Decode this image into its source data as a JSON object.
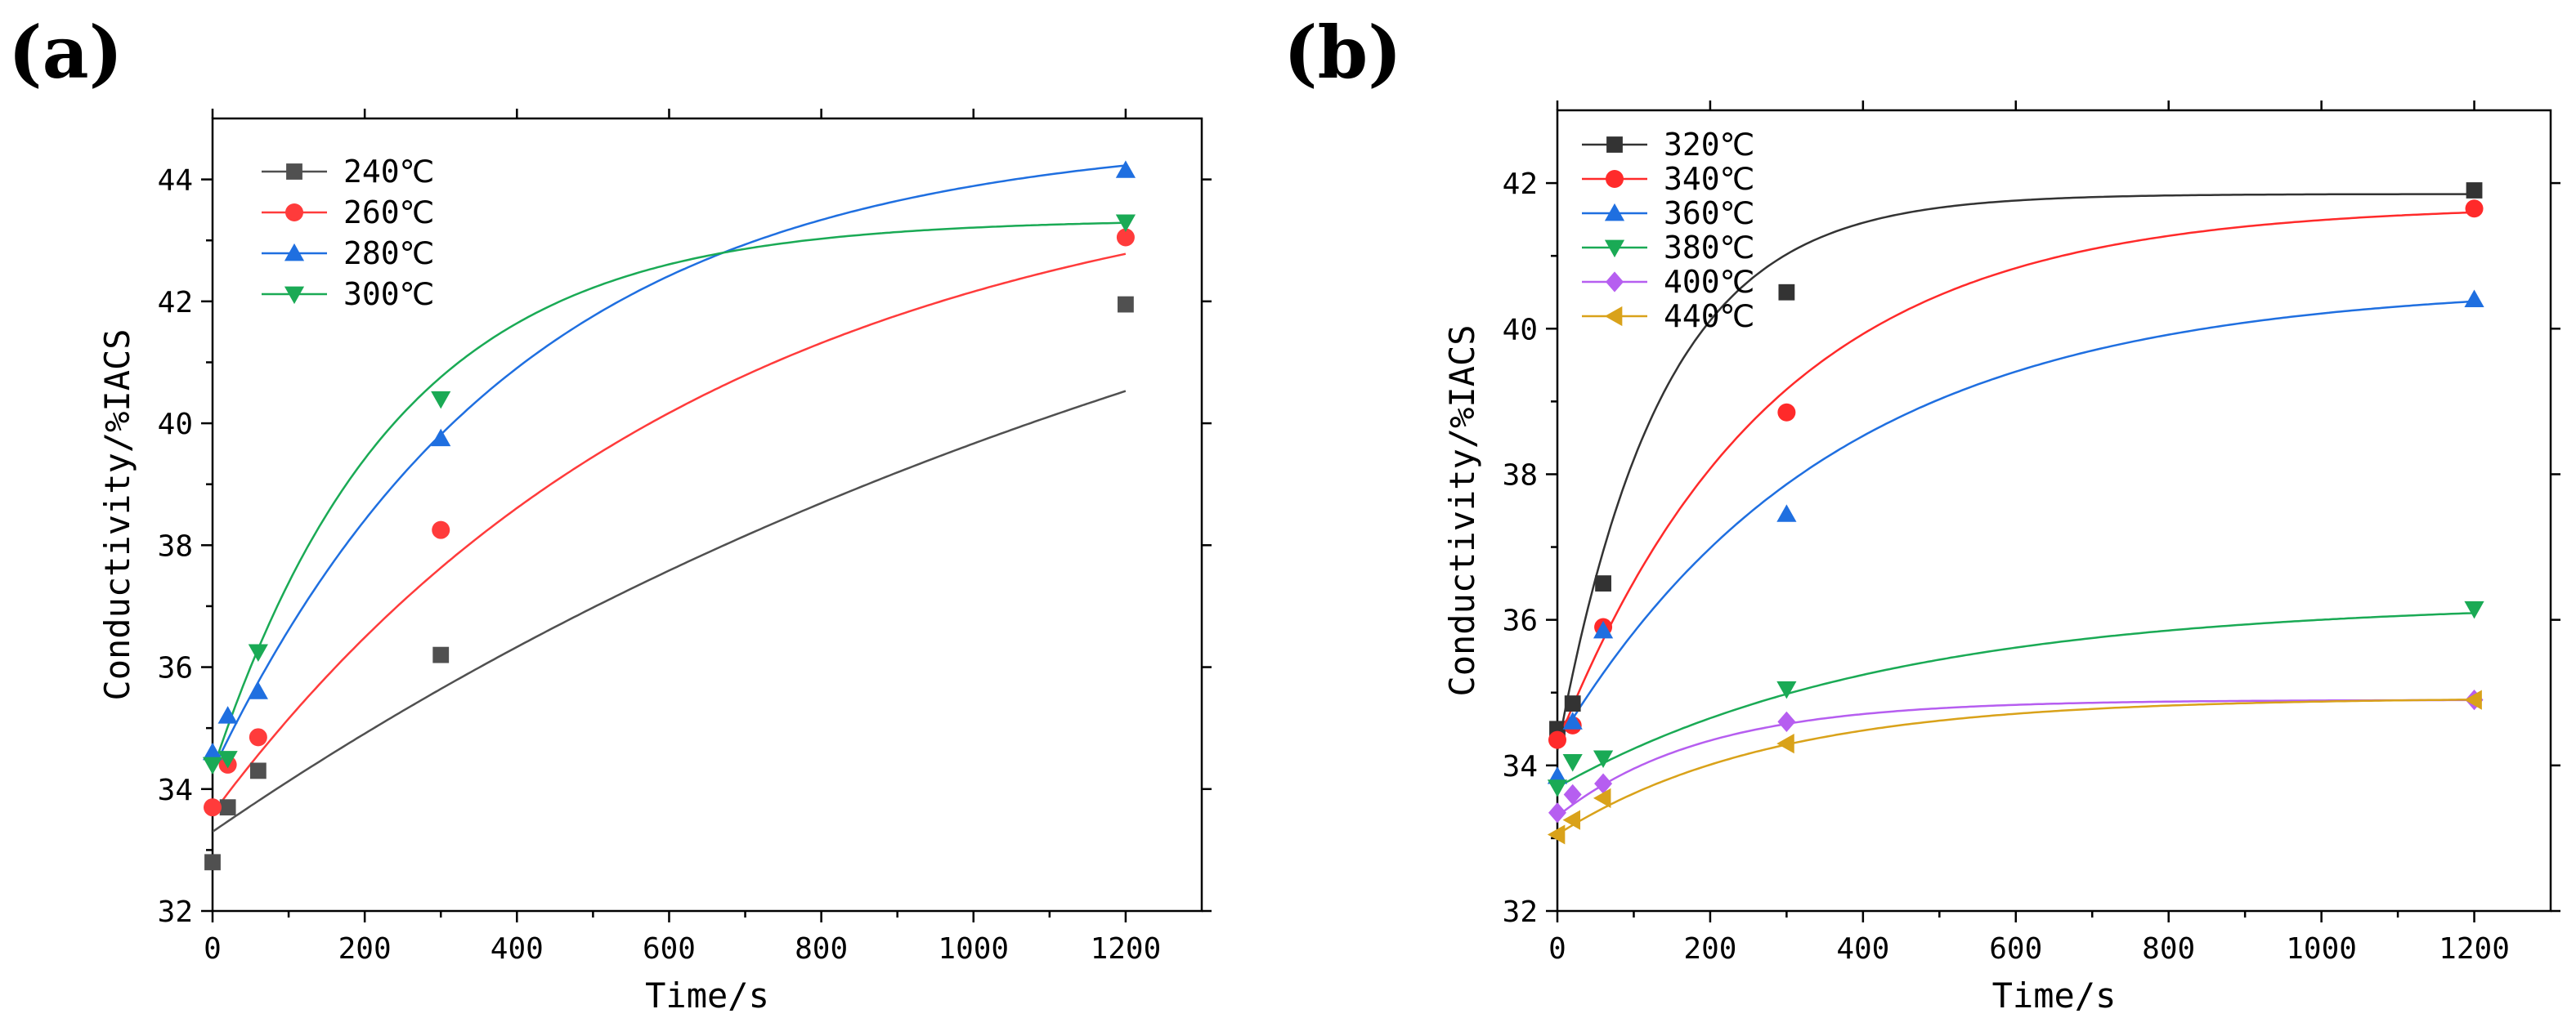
{
  "chart_data": [
    {
      "type": "scatter",
      "panel_label": "(a)",
      "title": "",
      "xlabel": "Time/s",
      "ylabel": "Conductivity/%IACS",
      "xlim": [
        0,
        1300
      ],
      "ylim": [
        32,
        45
      ],
      "xticks": [
        0,
        200,
        400,
        600,
        800,
        1000,
        1200
      ],
      "yticks": [
        32,
        34,
        36,
        38,
        40,
        42,
        44
      ],
      "xtick_labels": [
        "0",
        "200",
        "400",
        "600",
        "800",
        "1000",
        "1200"
      ],
      "ytick_labels": [
        "32",
        "34",
        "36",
        "38",
        "40",
        "42",
        "44"
      ],
      "legend_position": "top-left",
      "grid": false,
      "series": [
        {
          "name": "240℃",
          "marker": "square",
          "color": "#505050",
          "x": [
            0,
            20,
            60,
            300,
            1200
          ],
          "values": [
            32.8,
            33.7,
            34.3,
            36.2,
            41.95
          ],
          "fit": {
            "y0": 33.3,
            "A": 13.7,
            "tau": 1600
          }
        },
        {
          "name": "260℃",
          "marker": "circle",
          "color": "#ff3b3b",
          "x": [
            0,
            20,
            60,
            300,
            1200
          ],
          "values": [
            33.7,
            34.4,
            34.85,
            38.25,
            43.05
          ],
          "fit": {
            "y0": 33.6,
            "A": 10.9,
            "tau": 650
          }
        },
        {
          "name": "280℃",
          "marker": "triangle-up",
          "color": "#1f6fe0",
          "x": [
            0,
            20,
            60,
            300,
            1200
          ],
          "values": [
            34.6,
            35.2,
            35.6,
            39.75,
            44.15
          ],
          "fit": {
            "y0": 34.3,
            "A": 10.45,
            "tau": 400
          }
        },
        {
          "name": "300℃",
          "marker": "triangle-down",
          "color": "#1aaa55",
          "x": [
            0,
            20,
            60,
            300,
            1200
          ],
          "values": [
            34.4,
            34.5,
            36.25,
            40.4,
            43.3
          ],
          "fit": {
            "y0": 34.3,
            "A": 9.05,
            "tau": 240
          }
        }
      ]
    },
    {
      "type": "scatter",
      "panel_label": "(b)",
      "title": "",
      "xlabel": "Time/s",
      "ylabel": "Conductivity/%IACS",
      "xlim": [
        0,
        1300
      ],
      "ylim": [
        32,
        43
      ],
      "xticks": [
        0,
        200,
        400,
        600,
        800,
        1000,
        1200
      ],
      "yticks": [
        32,
        34,
        36,
        38,
        40,
        42
      ],
      "xtick_labels": [
        "0",
        "200",
        "400",
        "600",
        "800",
        "1000",
        "1200"
      ],
      "ytick_labels": [
        "32",
        "34",
        "36",
        "38",
        "40",
        "42"
      ],
      "legend_position": "top-left",
      "grid": false,
      "series": [
        {
          "name": "320℃",
          "marker": "square",
          "color": "#333333",
          "x": [
            0,
            20,
            60,
            300,
            1200
          ],
          "values": [
            34.5,
            34.85,
            36.5,
            40.5,
            41.9
          ],
          "fit": {
            "y0": 34.2,
            "A": 7.65,
            "tau": 135
          }
        },
        {
          "name": "340℃",
          "marker": "circle",
          "color": "#ff2a2a",
          "x": [
            0,
            20,
            60,
            300,
            1200
          ],
          "values": [
            34.35,
            34.55,
            35.9,
            38.85,
            41.65
          ],
          "fit": {
            "y0": 34.3,
            "A": 7.4,
            "tau": 280
          }
        },
        {
          "name": "360℃",
          "marker": "triangle-up",
          "color": "#1f6fe0",
          "x": [
            0,
            20,
            60,
            300,
            1200
          ],
          "values": [
            33.85,
            34.6,
            35.85,
            37.45,
            40.4
          ],
          "fit": {
            "y0": 34.3,
            "A": 6.3,
            "tau": 360
          }
        },
        {
          "name": "380℃",
          "marker": "triangle-down",
          "color": "#1aaa55",
          "x": [
            0,
            20,
            60,
            300,
            1200
          ],
          "values": [
            33.7,
            34.05,
            34.1,
            35.05,
            36.15
          ],
          "fit": {
            "y0": 33.7,
            "A": 2.55,
            "tau": 430
          }
        },
        {
          "name": "400℃",
          "marker": "diamond",
          "color": "#b65ef0",
          "x": [
            0,
            20,
            60,
            300,
            1200
          ],
          "values": [
            33.35,
            33.6,
            33.75,
            34.6,
            34.9
          ],
          "fit": {
            "y0": 33.3,
            "A": 1.6,
            "tau": 190
          }
        },
        {
          "name": "440℃",
          "marker": "triangle-left",
          "color": "#d9a21a",
          "x": [
            0,
            20,
            60,
            300,
            1200
          ],
          "values": [
            33.05,
            33.25,
            33.55,
            34.3,
            34.9
          ],
          "fit": {
            "y0": 33.05,
            "A": 1.88,
            "tau": 280
          }
        }
      ]
    }
  ]
}
